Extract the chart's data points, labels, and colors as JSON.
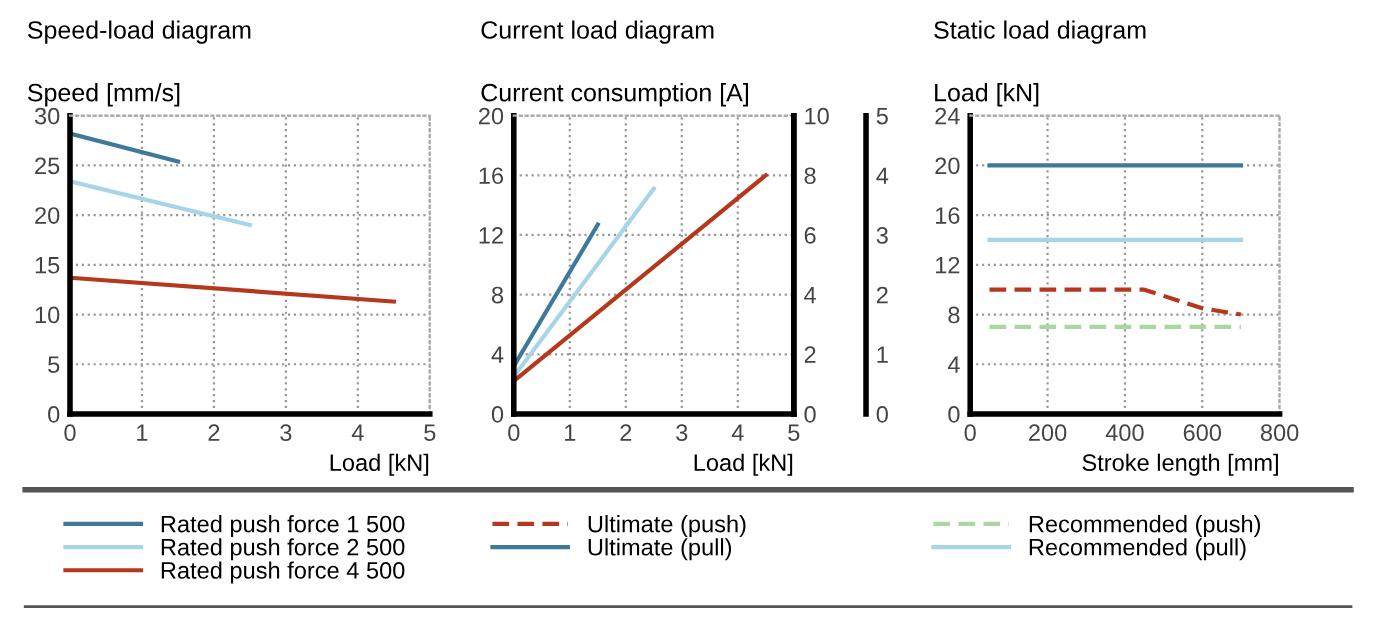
{
  "chart_data": [
    {
      "type": "line",
      "title": "Speed-load diagram",
      "ylabel": "Speed [mm/s]",
      "xlabel": "Load [kN]",
      "xlim": [
        0,
        5
      ],
      "xticks": [
        0,
        1,
        2,
        3,
        4,
        5
      ],
      "ylim": [
        0,
        30
      ],
      "yticks": [
        0,
        5,
        10,
        15,
        20,
        25,
        30
      ],
      "grid": true,
      "legend": "bottom",
      "series": [
        {
          "name": "Rated push force 1 500",
          "color": "#3d7a99",
          "x": [
            0,
            1.5
          ],
          "values": [
            28.2,
            25.4
          ]
        },
        {
          "name": "Rated push force 2 500",
          "color": "#a8d4ea",
          "x": [
            0,
            2.5
          ],
          "values": [
            23.4,
            19
          ]
        },
        {
          "name": "Rated push force 4 500",
          "color": "#b5381c",
          "x": [
            0,
            4.5
          ],
          "values": [
            13.7,
            11.3
          ]
        }
      ]
    },
    {
      "type": "line",
      "title": "Current load diagram",
      "ylabel": "Current consumption [A]",
      "xlabel": "Load [kN]",
      "xlim": [
        0,
        5
      ],
      "xticks": [
        0,
        1,
        2,
        3,
        4,
        5
      ],
      "ylim": [
        0,
        20
      ],
      "yticks": [
        0,
        4,
        8,
        12,
        16,
        20
      ],
      "y2lim": [
        0,
        10
      ],
      "y2ticks": [
        0,
        2,
        4,
        6,
        8,
        10
      ],
      "y3lim": [
        0,
        5
      ],
      "y3ticks": [
        0,
        1,
        2,
        3,
        4,
        5
      ],
      "grid": true,
      "series": [
        {
          "color": "#3d7a99",
          "x": [
            0,
            1.5
          ],
          "values": [
            3.2,
            12.7
          ]
        },
        {
          "color": "#a8d4ea",
          "x": [
            0,
            2.5
          ],
          "values": [
            2.5,
            15.1
          ]
        },
        {
          "color": "#b5381c",
          "x": [
            0,
            4.5
          ],
          "values": [
            2.2,
            16
          ]
        }
      ]
    },
    {
      "type": "line",
      "title": "Static load diagram",
      "ylabel": "Load [kN]",
      "xlabel": "Stroke length [mm]",
      "xlim": [
        0,
        800
      ],
      "xticks": [
        0,
        200,
        400,
        600,
        800
      ],
      "ylim": [
        0,
        24
      ],
      "yticks": [
        0,
        4,
        8,
        12,
        16,
        20,
        24
      ],
      "grid": true,
      "legend": "bottom",
      "series": [
        {
          "name": "Ultimate (push)",
          "color": "#b5381c",
          "line_style": "dashed",
          "x": [
            50,
            450,
            600,
            700
          ],
          "values": [
            10,
            10,
            8.5,
            8
          ]
        },
        {
          "name": "Ultimate (pull)",
          "color": "#3d7a99",
          "line_style": "solid",
          "x": [
            50,
            700
          ],
          "values": [
            20,
            20
          ]
        },
        {
          "name": "Recommended (push)",
          "color": "#a8d8a0",
          "line_style": "dashed",
          "x": [
            50,
            700
          ],
          "values": [
            7,
            7
          ]
        },
        {
          "name": "Recommended (pull)",
          "color": "#a8d4ea",
          "line_style": "solid",
          "x": [
            50,
            700
          ],
          "values": [
            14,
            14
          ]
        }
      ]
    }
  ]
}
